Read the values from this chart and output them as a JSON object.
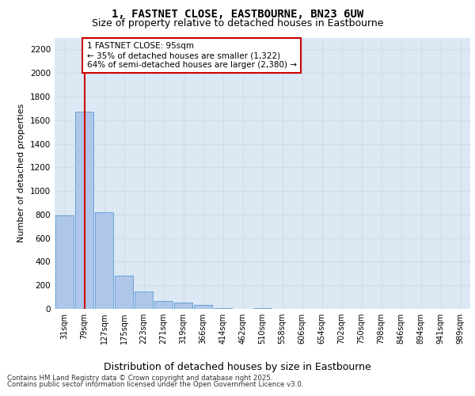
{
  "title_line1": "1, FASTNET CLOSE, EASTBOURNE, BN23 6UW",
  "title_line2": "Size of property relative to detached houses in Eastbourne",
  "xlabel": "Distribution of detached houses by size in Eastbourne",
  "ylabel": "Number of detached properties",
  "categories": [
    "31sqm",
    "79sqm",
    "127sqm",
    "175sqm",
    "223sqm",
    "271sqm",
    "319sqm",
    "366sqm",
    "414sqm",
    "462sqm",
    "510sqm",
    "558sqm",
    "606sqm",
    "654sqm",
    "702sqm",
    "750sqm",
    "798sqm",
    "846sqm",
    "894sqm",
    "941sqm",
    "989sqm"
  ],
  "values": [
    790,
    1670,
    820,
    280,
    150,
    65,
    55,
    35,
    10,
    0,
    10,
    0,
    0,
    0,
    0,
    0,
    0,
    0,
    0,
    0,
    0
  ],
  "bar_color": "#aec6e8",
  "bar_edge_color": "#5b9bd5",
  "grid_color": "#d0dce8",
  "background_color": "#dce9f5",
  "vline_x": 1,
  "vline_color": "#cc0000",
  "annotation_text": "1 FASTNET CLOSE: 95sqm\n← 35% of detached houses are smaller (1,322)\n64% of semi-detached houses are larger (2,380) →",
  "annotation_box_color": "#ffffff",
  "annotation_box_edge_color": "#cc0000",
  "ylim": [
    0,
    2300
  ],
  "yticks": [
    0,
    200,
    400,
    600,
    800,
    1000,
    1200,
    1400,
    1600,
    1800,
    2000,
    2200
  ],
  "footer_line1": "Contains HM Land Registry data © Crown copyright and database right 2025.",
  "footer_line2": "Contains public sector information licensed under the Open Government Licence v3.0."
}
